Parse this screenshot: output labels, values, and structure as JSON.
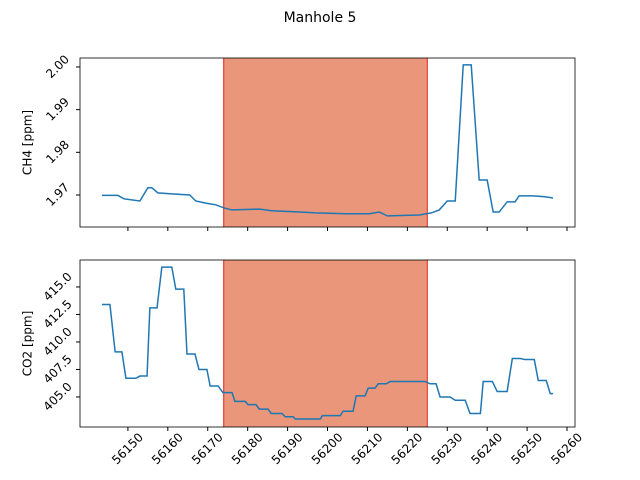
{
  "title": "Manhole 5",
  "chart_data": [
    {
      "type": "line",
      "ylabel": "CH4 [ppm]",
      "x": [
        56143.5,
        56147.5,
        56149,
        56153,
        56155,
        56156,
        56157.5,
        56160.5,
        56165.5,
        56167,
        56169.5,
        56172,
        56174,
        56176,
        56183,
        56186,
        56193,
        56197,
        56204.5,
        56210.5,
        56213,
        56215,
        56223,
        56226,
        56228,
        56230,
        56232,
        56234,
        56236,
        56238,
        56240,
        56241.5,
        56243,
        56245,
        56247,
        56248,
        56251.5,
        56254.5,
        56256.5
      ],
      "series": [
        {
          "color": "#1f77b4",
          "values": [
            1.9699,
            1.9699,
            1.9691,
            1.9686,
            1.9717,
            1.9717,
            1.9705,
            1.9703,
            1.97,
            1.9686,
            1.9681,
            1.9677,
            1.967,
            1.9665,
            1.9667,
            1.9663,
            1.966,
            1.9658,
            1.9656,
            1.9656,
            1.966,
            1.9651,
            1.9653,
            1.9658,
            1.9665,
            1.9686,
            1.9686,
            2.0005,
            2.0005,
            1.9735,
            1.9735,
            1.966,
            1.966,
            1.9684,
            1.9684,
            1.9698,
            1.9698,
            1.9696,
            1.9693
          ]
        }
      ],
      "xlim": [
        56138,
        56262
      ],
      "ylim": [
        1.9625,
        2.0021
      ],
      "xticks": [
        56150,
        56160,
        56170,
        56180,
        56190,
        56200,
        56210,
        56220,
        56230,
        56240,
        56250,
        56260
      ],
      "yticks": [
        1.97,
        1.98,
        1.99,
        {
          "value": 2,
          "label": "2.00"
        }
      ],
      "show_xtick_labels": false,
      "span": {
        "x": [
          56174,
          56225
        ],
        "color": "#e9967a",
        "edge_color": "#e8201a"
      }
    },
    {
      "type": "line",
      "ylabel": "CO2 [ppm]",
      "x": [
        56143.5,
        56145.5,
        56146.8,
        56148.5,
        56149.5,
        56152,
        56153,
        56154.8,
        56155.5,
        56157.3,
        56158.5,
        56161,
        56162,
        56164,
        56164.8,
        56166.8,
        56167.8,
        56169.8,
        56170.6,
        56172.6,
        56173.8,
        56176.1,
        56176.8,
        56179.4,
        56180.1,
        56182.1,
        56182.9,
        56185.1,
        56185.9,
        56188.6,
        56189.4,
        56191.4,
        56191.9,
        56198.2,
        56198.7,
        56203.2,
        56203.9,
        56206.4,
        56207.2,
        56209.4,
        56210.2,
        56211.9,
        56212.7,
        56214.7,
        56215.7,
        56224.5,
        56225.7,
        56227.2,
        56228.2,
        56230.7,
        56232,
        56234.5,
        56235.7,
        56238.3,
        56239,
        56241.3,
        56242.5,
        56245,
        56246.3,
        56248.3,
        56249.5,
        56251.8,
        56252.8,
        56254.8,
        56255.8,
        56256.5
      ],
      "series": [
        {
          "color": "#1f77b4",
          "values": [
            413.4,
            413.4,
            409.1,
            409.1,
            406.7,
            406.7,
            406.9,
            406.9,
            413.1,
            413.1,
            416.8,
            416.8,
            414.8,
            414.8,
            408.9,
            408.9,
            407.5,
            407.5,
            406.0,
            406.0,
            405.4,
            405.4,
            404.6,
            404.6,
            404.3,
            404.3,
            403.9,
            403.9,
            403.5,
            403.5,
            403.2,
            403.2,
            403.0,
            403.0,
            403.3,
            403.3,
            403.7,
            403.7,
            405.1,
            405.1,
            405.8,
            405.8,
            406.2,
            406.2,
            406.4,
            406.4,
            406.2,
            406.2,
            405.0,
            405.0,
            404.7,
            404.7,
            403.5,
            403.5,
            406.4,
            406.4,
            405.5,
            405.5,
            408.5,
            408.5,
            408.4,
            408.4,
            406.5,
            406.5,
            405.3,
            405.3
          ]
        }
      ],
      "xlim": [
        56138,
        56262
      ],
      "ylim": [
        402.27,
        417.45
      ],
      "xticks": [
        56150,
        56160,
        56170,
        56180,
        56190,
        56200,
        56210,
        56220,
        56230,
        56240,
        56250,
        56260
      ],
      "yticks": [
        {
          "value": 405,
          "label": "405.0"
        },
        407.5,
        {
          "value": 410,
          "label": "410.0"
        },
        412.5,
        {
          "value": 415,
          "label": "415.0"
        }
      ],
      "show_xtick_labels": true,
      "span": {
        "x": [
          56174,
          56225
        ],
        "color": "#e9967a",
        "edge_color": "#e8201a"
      }
    }
  ]
}
